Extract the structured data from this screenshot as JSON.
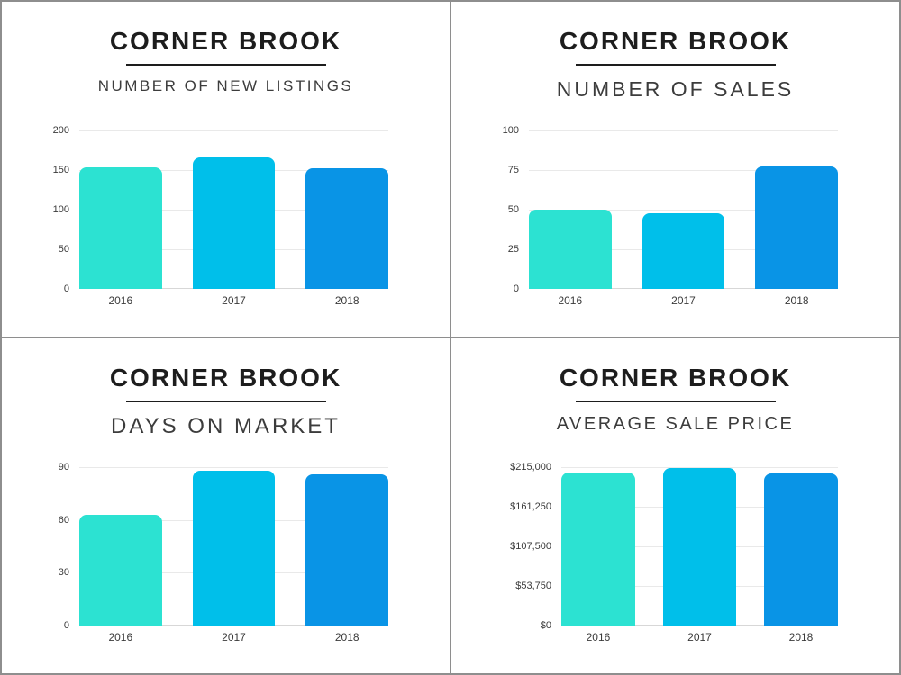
{
  "style": {
    "frame_color": "#8e8e8e",
    "background": "#ffffff",
    "title_color": "#1d1d1d",
    "subtitle_color": "#3c3c3c",
    "gridline_color": "#e9e9e9",
    "axis_line_color": "#d7d7d7",
    "tick_label_color": "#3a3a3a",
    "bar_colors": [
      "#2CE2D2",
      "#00BFEA",
      "#0994E6"
    ]
  },
  "chart_data": [
    {
      "type": "bar",
      "title": "CORNER BROOK",
      "subtitle": "NUMBER OF NEW LISTINGS",
      "categories": [
        "2016",
        "2017",
        "2018"
      ],
      "values": [
        153,
        166,
        152
      ],
      "ylim": [
        0,
        200
      ],
      "yticks": [
        {
          "value": 0,
          "label": "0"
        },
        {
          "value": 50,
          "label": "50"
        },
        {
          "value": 100,
          "label": "100"
        },
        {
          "value": 150,
          "label": "150"
        },
        {
          "value": 200,
          "label": "200"
        }
      ],
      "grid": true,
      "legend": false,
      "xlabel": "",
      "ylabel": ""
    },
    {
      "type": "bar",
      "title": "CORNER BROOK",
      "subtitle": "NUMBER OF SALES",
      "categories": [
        "2016",
        "2017",
        "2018"
      ],
      "values": [
        50,
        48,
        77
      ],
      "ylim": [
        0,
        100
      ],
      "yticks": [
        {
          "value": 0,
          "label": "0"
        },
        {
          "value": 25,
          "label": "25"
        },
        {
          "value": 50,
          "label": "50"
        },
        {
          "value": 75,
          "label": "75"
        },
        {
          "value": 100,
          "label": "100"
        }
      ],
      "grid": true,
      "legend": false,
      "xlabel": "",
      "ylabel": ""
    },
    {
      "type": "bar",
      "title": "CORNER BROOK",
      "subtitle": "DAYS ON MARKET",
      "categories": [
        "2016",
        "2017",
        "2018"
      ],
      "values": [
        63,
        88,
        86
      ],
      "ylim": [
        0,
        90
      ],
      "yticks": [
        {
          "value": 0,
          "label": "0"
        },
        {
          "value": 30,
          "label": "30"
        },
        {
          "value": 60,
          "label": "60"
        },
        {
          "value": 90,
          "label": "90"
        }
      ],
      "grid": true,
      "legend": false,
      "xlabel": "",
      "ylabel": ""
    },
    {
      "type": "bar",
      "title": "CORNER BROOK",
      "subtitle": "AVERAGE SALE PRICE",
      "categories": [
        "2016",
        "2017",
        "2018"
      ],
      "values": [
        208000,
        214000,
        206000
      ],
      "ylim": [
        0,
        215000
      ],
      "yticks": [
        {
          "value": 0,
          "label": "$0"
        },
        {
          "value": 53750,
          "label": "$53,750"
        },
        {
          "value": 107500,
          "label": "$107,500"
        },
        {
          "value": 161250,
          "label": "$161,250"
        },
        {
          "value": 215000,
          "label": "$215,000"
        }
      ],
      "grid": true,
      "legend": false,
      "xlabel": "",
      "ylabel": ""
    }
  ]
}
